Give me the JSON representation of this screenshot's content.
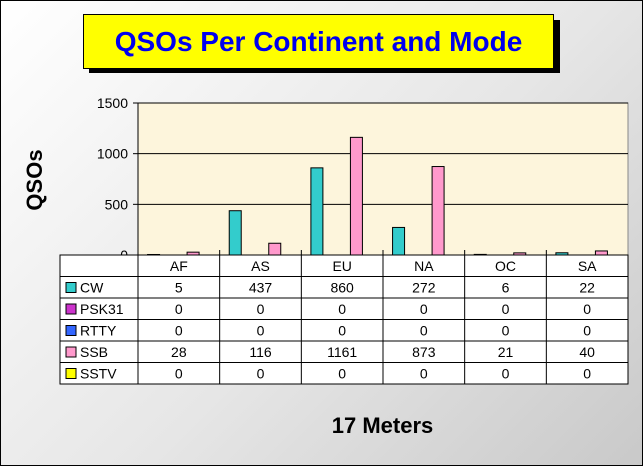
{
  "chart_data": {
    "type": "bar",
    "title": "QSOs Per Continent and Mode",
    "ylabel": "QSOs",
    "xlabel": "17 Meters",
    "categories": [
      "AF",
      "AS",
      "EU",
      "NA",
      "OC",
      "SA"
    ],
    "ylim": [
      0,
      1500
    ],
    "yticks": [
      "0",
      "500",
      "1000",
      "1500"
    ],
    "grid": true,
    "legend": "data-table-left",
    "series": [
      {
        "name": "CW",
        "color": "#33cccc",
        "values": [
          5,
          437,
          860,
          272,
          6,
          22
        ]
      },
      {
        "name": "PSK31",
        "color": "#cc33cc",
        "values": [
          0,
          0,
          0,
          0,
          0,
          0
        ]
      },
      {
        "name": "RTTY",
        "color": "#3366ff",
        "values": [
          0,
          0,
          0,
          0,
          0,
          0
        ]
      },
      {
        "name": "SSB",
        "color": "#ff99cc",
        "values": [
          28,
          116,
          1161,
          873,
          21,
          40
        ]
      },
      {
        "name": "SSTV",
        "color": "#ffff00",
        "values": [
          0,
          0,
          0,
          0,
          0,
          0
        ]
      }
    ]
  },
  "colors": {
    "plot_background": "#fdf5dc",
    "title_background": "#ffff00",
    "title_text": "#0000ee"
  }
}
